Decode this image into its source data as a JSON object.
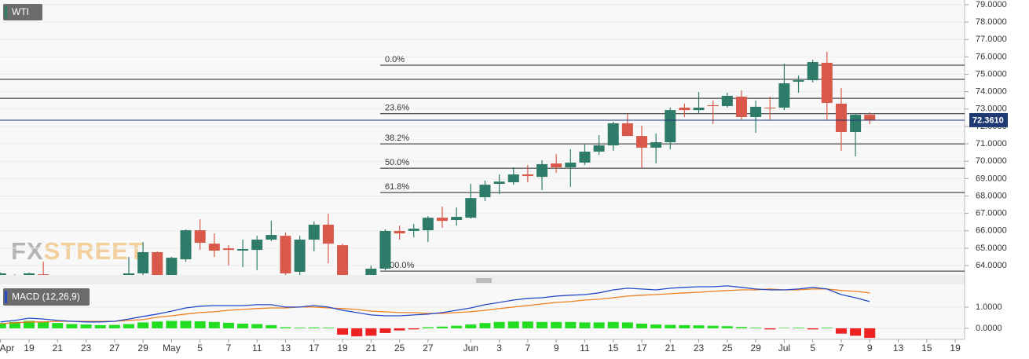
{
  "chart_data": {
    "type": "candlestick",
    "title": "WTI",
    "watermark": [
      "FX",
      "STREET"
    ],
    "categories": [
      "Apr",
      null,
      "19",
      null,
      "21",
      null,
      "23",
      null,
      "27",
      null,
      "29",
      null,
      "May",
      null,
      "5",
      null,
      "7",
      null,
      "11",
      null,
      "13",
      null,
      "17",
      null,
      "19",
      null,
      "21",
      null,
      "25",
      null,
      "27",
      null,
      null,
      "Jun",
      null,
      "3",
      null,
      "7",
      null,
      "9",
      null,
      "11",
      null,
      "15",
      null,
      "17",
      null,
      "21",
      null,
      "23",
      null,
      "25",
      null,
      "29",
      null,
      "Jul",
      null,
      "5",
      null,
      "7",
      null,
      "9",
      null,
      "13",
      null,
      "15",
      null,
      "19"
    ],
    "open": [
      63.4,
      63.3,
      63.37,
      63.5,
      null,
      null,
      null,
      null,
      null,
      63.37,
      63.55,
      64.77,
      63.46,
      64.36,
      66.03,
      65.26,
      64.99,
      64.86,
      64.9,
      65.49,
      65.71,
      63.64,
      65.49,
      66.35,
      65.17,
      null,
      63.37,
      63.82,
      65.99,
      65.99,
      66.03,
      66.75,
      66.62,
      66.75,
      67.93,
      68.7,
      68.79,
      69.24,
      69.1,
      69.87,
      69.65,
      69.92,
      70.55,
      70.91,
      72.18,
      71.45,
      70.78,
      71.09,
      73.08,
      72.94,
      73.22,
      73.17,
      73.71,
      72.54,
      73.08,
      73.08,
      74.57,
      74.66,
      75.66,
      73.31,
      71.68,
      72.67,
      null,
      null,
      null,
      null,
      null,
      null
    ],
    "high": [
      63.6,
      63.5,
      63.6,
      64.22,
      null,
      null,
      null,
      null,
      null,
      64.49,
      65.35,
      64.81,
      64.5,
      66.08,
      66.66,
      65.85,
      65.17,
      65.49,
      65.71,
      66.57,
      65.9,
      65.71,
      66.53,
      66.98,
      65.26,
      null,
      64.0,
      66.08,
      66.3,
      66.39,
      66.84,
      67.39,
      67.34,
      68.7,
      68.88,
      69.24,
      69.65,
      69.78,
      70.05,
      70.41,
      70.69,
      70.96,
      71.5,
      72.27,
      72.72,
      72.04,
      71.59,
      73.08,
      73.31,
      73.98,
      73.49,
      73.94,
      74.07,
      73.49,
      73.71,
      75.61,
      74.93,
      75.84,
      76.29,
      74.21,
      72.76,
      72.81,
      null,
      null,
      null,
      null,
      null,
      null
    ],
    "low": [
      63.2,
      63.2,
      63.2,
      63.2,
      null,
      null,
      null,
      null,
      null,
      63.2,
      63.4,
      63.2,
      63.3,
      64.22,
      64.9,
      64.49,
      64.0,
      63.91,
      63.73,
      65.4,
      63.37,
      63.46,
      64.81,
      64.13,
      63.1,
      null,
      63.2,
      63.73,
      65.49,
      65.62,
      65.35,
      66.17,
      66.3,
      66.71,
      67.7,
      68.11,
      68.65,
      68.79,
      68.34,
      69.33,
      68.52,
      69.78,
      70.37,
      70.6,
      71.45,
      69.6,
      69.87,
      70.69,
      72.54,
      72.72,
      72.13,
      73.08,
      72.4,
      71.63,
      72.4,
      72.94,
      73.94,
      74.53,
      72.4,
      70.6,
      70.28,
      72.13,
      null,
      null,
      null,
      null,
      null,
      null
    ],
    "close": [
      63.55,
      63.4,
      63.55,
      63.37,
      null,
      null,
      null,
      null,
      null,
      63.55,
      64.77,
      63.37,
      64.45,
      66.03,
      65.31,
      64.86,
      64.9,
      64.95,
      65.49,
      65.76,
      63.55,
      65.49,
      66.35,
      65.26,
      63.23,
      null,
      63.82,
      65.99,
      65.85,
      66.12,
      66.75,
      66.57,
      66.8,
      67.88,
      68.65,
      68.83,
      69.24,
      69.15,
      69.83,
      69.65,
      69.92,
      70.55,
      70.91,
      72.18,
      71.45,
      70.78,
      71.09,
      72.94,
      72.94,
      73.08,
      73.17,
      73.76,
      72.54,
      73.13,
      73.04,
      74.48,
      74.66,
      75.7,
      73.35,
      71.68,
      72.67,
      72.36,
      null,
      null,
      null,
      null,
      null,
      null
    ],
    "up_color": "#2f7b69",
    "down_color": "#d8594a",
    "ylim": [
      63.46,
      79.27
    ],
    "yticks": [
      {
        "value": 64,
        "label": "64.0000"
      },
      {
        "value": 65,
        "label": "65.0000"
      },
      {
        "value": 66,
        "label": "66.0000"
      },
      {
        "value": 67,
        "label": "67.0000"
      },
      {
        "value": 68,
        "label": "68.0000"
      },
      {
        "value": 69,
        "label": "69.0000"
      },
      {
        "value": 70,
        "label": "70.0000"
      },
      {
        "value": 71,
        "label": "71.0000"
      },
      {
        "value": 72,
        "label": "72.0000"
      },
      {
        "value": 73,
        "label": "73.0000"
      },
      {
        "value": 74,
        "label": "74.0000"
      },
      {
        "value": 75,
        "label": "75.0000"
      },
      {
        "value": 76,
        "label": "76.0000"
      },
      {
        "value": 77,
        "label": "77.0000"
      },
      {
        "value": 78,
        "label": "78.0000"
      },
      {
        "value": 79,
        "label": "79.0000"
      }
    ],
    "grid": true,
    "last_price": {
      "value": 72.361,
      "label": "72.3610"
    },
    "last_price_color": "#1f3a73",
    "fib_levels": [
      {
        "value": 75.52,
        "label": "0.0%"
      },
      {
        "value": 72.73,
        "label": "23.6%"
      },
      {
        "value": 71.0,
        "label": "38.2%"
      },
      {
        "value": 69.6,
        "label": "50.0%"
      },
      {
        "value": 68.2,
        "label": "61.8%"
      },
      {
        "value": 63.68,
        "label": "100.0%"
      }
    ],
    "levels": [
      74.71,
      73.62
    ],
    "indicator": {
      "type": "macd",
      "title": "MACD (12,26,9)",
      "ylim": [
        -0.52,
        2.07
      ],
      "yticks": [
        {
          "value": 0,
          "label": "0.0000"
        },
        {
          "value": 1,
          "label": "1.0000"
        }
      ],
      "macd_color": "#2649c9",
      "signal_color": "#f08020",
      "positive_color": "#22dd22",
      "negative_color": "#ee2222",
      "macd": [
        0.3,
        0.37,
        0.48,
        0.44,
        0.37,
        0.33,
        0.3,
        0.3,
        0.33,
        0.44,
        0.56,
        0.67,
        0.81,
        0.96,
        1.04,
        1.07,
        1.07,
        1.07,
        1.11,
        1.11,
        1.0,
        1.0,
        1.07,
        1.0,
        0.85,
        0.74,
        0.63,
        0.59,
        0.59,
        0.63,
        0.67,
        0.74,
        0.85,
        0.96,
        1.11,
        1.22,
        1.33,
        1.41,
        1.44,
        1.52,
        1.56,
        1.59,
        1.67,
        1.81,
        1.89,
        1.85,
        1.81,
        1.89,
        1.93,
        1.96,
        1.96,
        2.0,
        1.93,
        1.85,
        1.81,
        1.81,
        1.85,
        1.93,
        1.85,
        1.59,
        1.44,
        1.26,
        null,
        null,
        null,
        null,
        null,
        null
      ],
      "signal": [
        0.22,
        0.26,
        0.3,
        0.3,
        0.33,
        0.33,
        0.33,
        0.33,
        0.33,
        0.37,
        0.41,
        0.52,
        0.59,
        0.67,
        0.74,
        0.78,
        0.85,
        0.89,
        0.93,
        0.96,
        0.96,
        1.0,
        1.0,
        0.96,
        0.93,
        0.89,
        0.81,
        0.78,
        0.74,
        0.74,
        0.7,
        0.7,
        0.74,
        0.78,
        0.85,
        0.93,
        1.0,
        1.07,
        1.15,
        1.22,
        1.26,
        1.33,
        1.37,
        1.44,
        1.52,
        1.56,
        1.59,
        1.63,
        1.67,
        1.7,
        1.74,
        1.78,
        1.81,
        1.81,
        1.85,
        1.81,
        1.81,
        1.85,
        1.85,
        1.78,
        1.74,
        1.67,
        null,
        null,
        null,
        null,
        null,
        null
      ],
      "histogram": [
        0.25,
        0.3,
        0.35,
        0.3,
        0.25,
        0.2,
        0.18,
        0.15,
        0.16,
        0.2,
        0.28,
        0.32,
        0.35,
        0.35,
        0.33,
        0.3,
        0.26,
        0.22,
        0.2,
        0.15,
        0.05,
        0.03,
        0.04,
        0.03,
        -0.3,
        -0.38,
        -0.35,
        -0.22,
        -0.1,
        -0.05,
        0.05,
        0.08,
        0.12,
        0.18,
        0.25,
        0.3,
        0.32,
        0.32,
        0.3,
        0.3,
        0.3,
        0.28,
        0.28,
        0.3,
        0.28,
        0.22,
        0.18,
        0.16,
        0.15,
        0.14,
        0.12,
        0.1,
        0.06,
        0.03,
        -0.05,
        0.02,
        0.03,
        -0.05,
        0.03,
        -0.25,
        -0.35,
        -0.45,
        null,
        null,
        null,
        null,
        null,
        null
      ]
    }
  }
}
